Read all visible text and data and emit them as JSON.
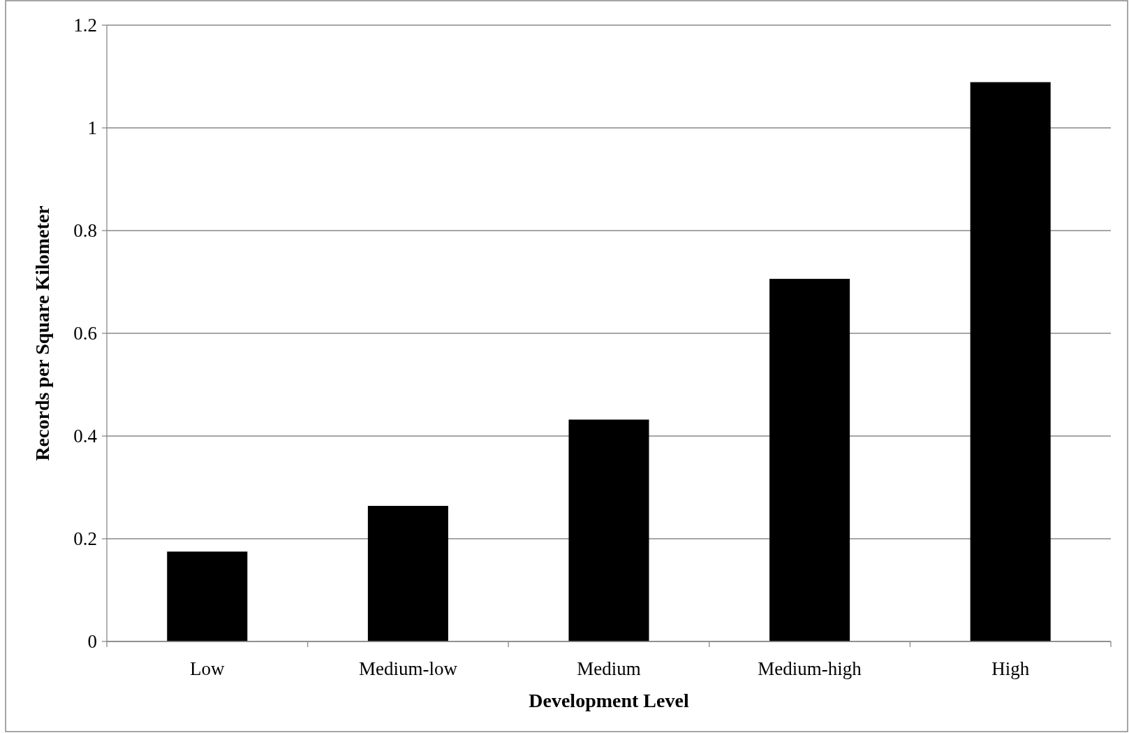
{
  "chart_data": {
    "type": "bar",
    "xlabel": "Development Level",
    "ylabel": "Records per Square Kilometer",
    "categories": [
      "Low",
      "Medium-low",
      "Medium",
      "Medium-high",
      "High"
    ],
    "values": [
      0.175,
      0.264,
      0.432,
      0.706,
      1.089
    ],
    "color": "#000000",
    "ylim": [
      0,
      1.2
    ],
    "yticks": [
      0,
      0.2,
      0.4,
      0.6,
      0.8,
      1,
      1.2
    ],
    "grid": "y"
  }
}
